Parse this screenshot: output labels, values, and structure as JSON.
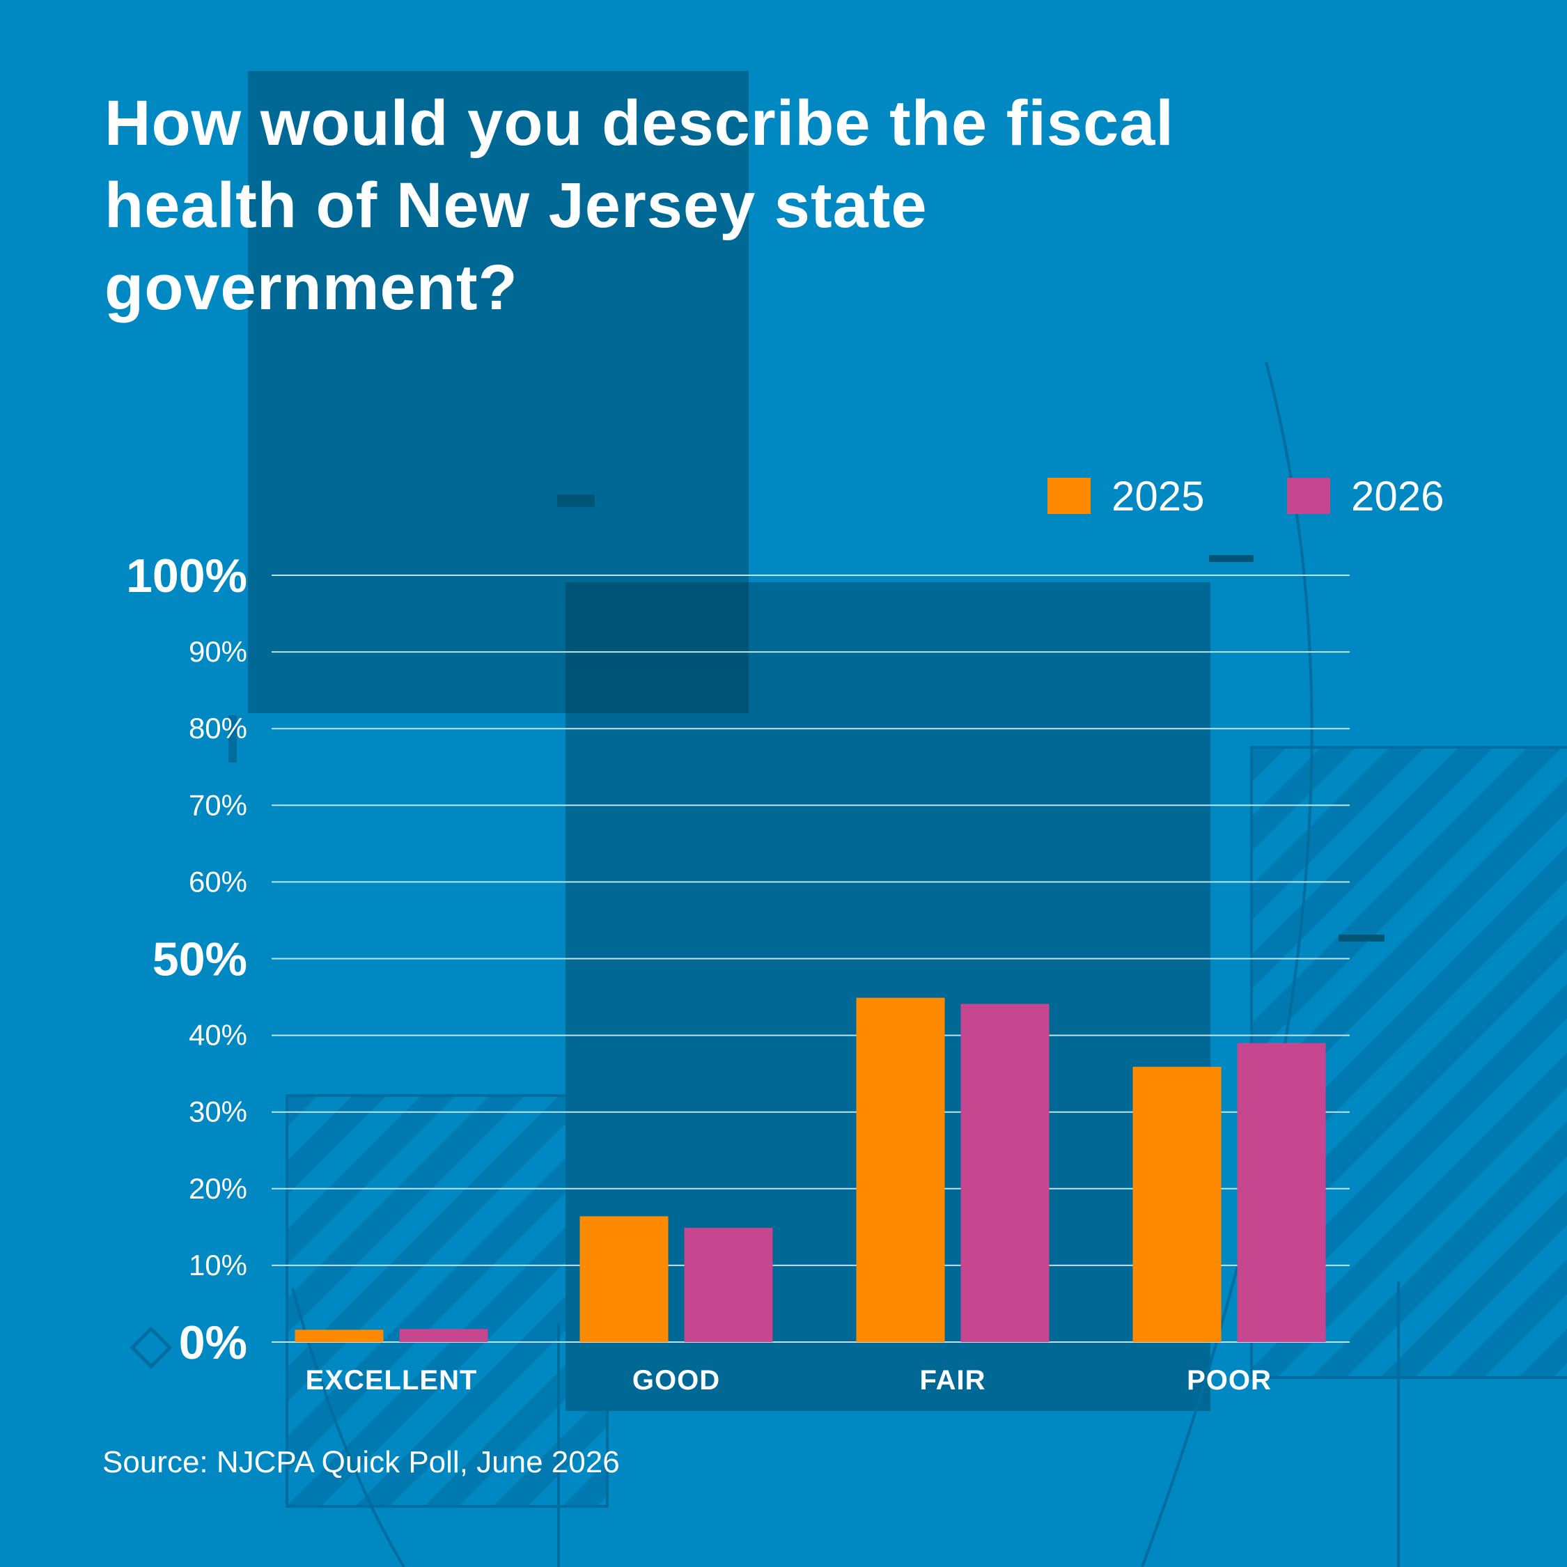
{
  "title": "How would you describe the fiscal health of New Jersey state government?",
  "source": "Source: NJCPA Quick Poll, June 2026",
  "colors": {
    "background": "#0088c2",
    "series_2025": "#ff8a00",
    "series_2026": "#c64690",
    "gridline": "#bfe4f5",
    "text": "#ffffff"
  },
  "chart_data": {
    "type": "bar",
    "title": "How would you describe the fiscal health of New Jersey state government?",
    "xlabel": "",
    "ylabel": "",
    "categories": [
      "EXCELLENT",
      "GOOD",
      "FAIR",
      "POOR"
    ],
    "series": [
      {
        "name": "2025",
        "color": "#ff8a00",
        "values": [
          1.6,
          16.4,
          44.9,
          35.9
        ]
      },
      {
        "name": "2026",
        "color": "#c64690",
        "values": [
          1.7,
          14.9,
          44.1,
          39.0
        ]
      }
    ],
    "y_ticks": [
      {
        "value": 100,
        "label": "100%",
        "emphasis": true
      },
      {
        "value": 90,
        "label": "90%",
        "emphasis": false
      },
      {
        "value": 80,
        "label": "80%",
        "emphasis": false
      },
      {
        "value": 70,
        "label": "70%",
        "emphasis": false
      },
      {
        "value": 60,
        "label": "60%",
        "emphasis": false
      },
      {
        "value": 50,
        "label": "50%",
        "emphasis": true
      },
      {
        "value": 40,
        "label": "40%",
        "emphasis": false
      },
      {
        "value": 30,
        "label": "30%",
        "emphasis": false
      },
      {
        "value": 20,
        "label": "20%",
        "emphasis": false
      },
      {
        "value": 10,
        "label": "10%",
        "emphasis": false
      },
      {
        "value": 0,
        "label": "0%",
        "emphasis": true
      }
    ],
    "ylim": [
      0,
      100
    ],
    "grid": true,
    "legend_position": "top-right"
  }
}
